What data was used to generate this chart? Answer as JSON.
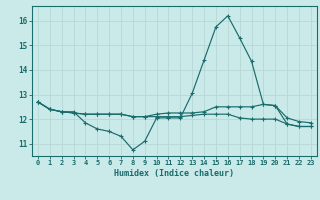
{
  "xlabel": "Humidex (Indice chaleur)",
  "x": [
    0,
    1,
    2,
    3,
    4,
    5,
    6,
    7,
    8,
    9,
    10,
    11,
    12,
    13,
    14,
    15,
    16,
    17,
    18,
    19,
    20,
    21,
    22,
    23
  ],
  "line1": [
    12.7,
    12.4,
    12.3,
    12.3,
    11.85,
    11.6,
    11.5,
    11.3,
    10.75,
    11.1,
    12.05,
    12.05,
    12.05,
    13.05,
    14.4,
    15.75,
    16.2,
    15.3,
    14.35,
    12.6,
    12.55,
    11.8,
    11.7,
    11.7
  ],
  "line2": [
    12.7,
    12.4,
    12.3,
    12.25,
    12.2,
    12.2,
    12.2,
    12.2,
    12.1,
    12.1,
    12.2,
    12.25,
    12.25,
    12.25,
    12.3,
    12.5,
    12.5,
    12.5,
    12.5,
    12.6,
    12.55,
    12.05,
    11.9,
    11.85
  ],
  "line3": [
    12.7,
    12.4,
    12.3,
    12.25,
    12.2,
    12.2,
    12.2,
    12.2,
    12.1,
    12.1,
    12.1,
    12.1,
    12.1,
    12.15,
    12.2,
    12.2,
    12.2,
    12.05,
    12.0,
    12.0,
    12.0,
    11.8,
    11.7,
    11.7
  ],
  "bg_color": "#caeaea",
  "line_color": "#1a6b6b",
  "grid_color": "#b8d8d8",
  "ylim": [
    10.5,
    16.6
  ],
  "yticks": [
    11,
    12,
    13,
    14,
    15,
    16
  ],
  "xticks": [
    0,
    1,
    2,
    3,
    4,
    5,
    6,
    7,
    8,
    9,
    10,
    11,
    12,
    13,
    14,
    15,
    16,
    17,
    18,
    19,
    20,
    21,
    22,
    23
  ]
}
